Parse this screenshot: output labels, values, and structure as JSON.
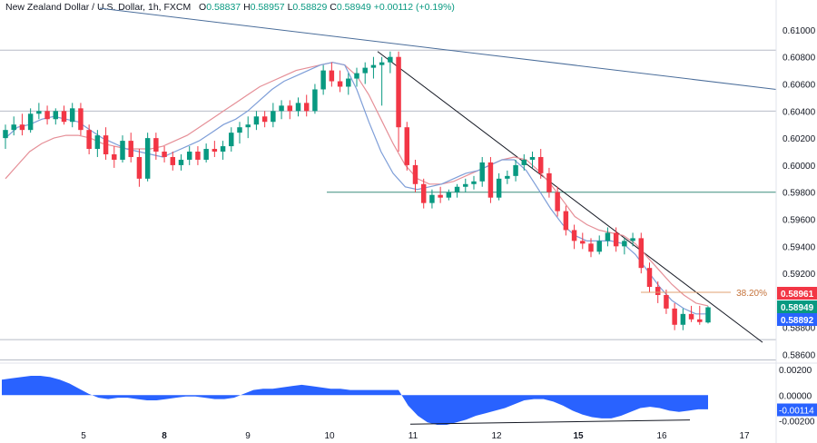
{
  "header": {
    "symbol": "New Zealand Dollar / U.S. Dollar, 1h, FXCM",
    "open_key": "O",
    "open": "0.58837",
    "high_key": "H",
    "high": "0.58957",
    "low_key": "L",
    "low": "0.58829",
    "close_key": "C",
    "close": "0.58949",
    "change": "+0.00112 (+0.19%)"
  },
  "price_axis": {
    "ticks": [
      "0.61000",
      "0.60800",
      "0.60600",
      "0.60400",
      "0.60200",
      "0.60000",
      "0.59800",
      "0.59600",
      "0.59400",
      "0.59200",
      "0.58800",
      "0.58600"
    ],
    "ylim": [
      0.5855,
      0.611
    ]
  },
  "time_axis": {
    "labels": [
      {
        "text": "5",
        "bold": false
      },
      {
        "text": "8",
        "bold": true
      },
      {
        "text": "9",
        "bold": false
      },
      {
        "text": "10",
        "bold": false
      },
      {
        "text": "11",
        "bold": false
      },
      {
        "text": "12",
        "bold": false
      },
      {
        "text": "15",
        "bold": true
      },
      {
        "text": "16",
        "bold": false
      },
      {
        "text": "17",
        "bold": false
      }
    ]
  },
  "price_badges": [
    {
      "text": "0.58961",
      "color": "#f23645"
    },
    {
      "text": "0.58949",
      "color": "#089981"
    },
    {
      "text": "0.58892",
      "color": "#2962ff"
    }
  ],
  "fib_label": "38.20%",
  "oscillator": {
    "ticks": [
      "0.00200",
      "0.00000",
      "-0.00200"
    ],
    "ylim": [
      -0.0023,
      0.0022
    ],
    "value_badge": "-0.00114",
    "values": [
      0.0012,
      0.0013,
      0.0014,
      0.0015,
      0.0015,
      0.0014,
      0.0012,
      0.0009,
      0.0005,
      0.0001,
      -0.0002,
      -0.0003,
      -0.0002,
      -0.0002,
      -0.0003,
      -0.0004,
      -0.0004,
      -0.0003,
      -0.0002,
      -0.0001,
      -0.0001,
      -0.0002,
      -0.0003,
      -0.0003,
      -0.0002,
      0.0001,
      0.0004,
      0.0005,
      0.0005,
      0.0006,
      0.0007,
      0.0008,
      0.0007,
      0.0006,
      0.0005,
      0.0005,
      0.0004,
      0.0004,
      0.0004,
      0.0004,
      0.0004,
      0.0004,
      -0.0008,
      -0.0016,
      -0.0021,
      -0.0023,
      -0.0023,
      -0.0021,
      -0.0019,
      -0.0016,
      -0.0014,
      -0.0012,
      -0.001,
      -0.0007,
      -0.0004,
      -0.0003,
      -0.0003,
      -0.0005,
      -0.0008,
      -0.0012,
      -0.0015,
      -0.0017,
      -0.0018,
      -0.0018,
      -0.0016,
      -0.0013,
      -0.001,
      -0.0009,
      -0.001,
      -0.0012,
      -0.0013,
      -0.0012,
      -0.0011,
      -0.0011
    ]
  },
  "colors": {
    "up": "#089981",
    "down": "#f23645",
    "fast_ma": "#7e9ed8",
    "slow_ma": "#e58f97",
    "oscillator_fill": "#2962ff",
    "fib_line": "#e0a070",
    "fib_text": "#c5733b",
    "horizontal_level": "#3c8d7f",
    "trendline_long": "#4a6d9a",
    "trendline_short": "#131722",
    "grid": "#b7bcc7",
    "axis_text": "#131722"
  },
  "chart_data": {
    "type": "candlestick",
    "levels": [
      0.6085,
      0.604,
      0.598,
      0.5871,
      0.5856
    ],
    "fib_level": 0.5906,
    "candles": [
      [
        0.602,
        0.603,
        0.6012,
        0.6026
      ],
      [
        0.6026,
        0.6036,
        0.6022,
        0.603
      ],
      [
        0.603,
        0.6038,
        0.6022,
        0.6026
      ],
      [
        0.6026,
        0.6042,
        0.6024,
        0.6038
      ],
      [
        0.6038,
        0.6046,
        0.6034,
        0.604
      ],
      [
        0.604,
        0.6044,
        0.603,
        0.6034
      ],
      [
        0.6034,
        0.6042,
        0.603,
        0.604
      ],
      [
        0.604,
        0.6044,
        0.603,
        0.6032
      ],
      [
        0.6032,
        0.6046,
        0.6028,
        0.6042
      ],
      [
        0.6042,
        0.6046,
        0.6022,
        0.6026
      ],
      [
        0.6026,
        0.603,
        0.6008,
        0.6012
      ],
      [
        0.6012,
        0.6026,
        0.6006,
        0.6022
      ],
      [
        0.6022,
        0.6028,
        0.6004,
        0.6008
      ],
      [
        0.6008,
        0.6014,
        0.5998,
        0.6004
      ],
      [
        0.6004,
        0.6022,
        0.6002,
        0.6018
      ],
      [
        0.6018,
        0.6024,
        0.6002,
        0.6006
      ],
      [
        0.6006,
        0.6012,
        0.5984,
        0.599
      ],
      [
        0.599,
        0.6024,
        0.5988,
        0.602
      ],
      [
        0.602,
        0.6024,
        0.6004,
        0.601
      ],
      [
        0.601,
        0.6014,
        0.6002,
        0.6006
      ],
      [
        0.6006,
        0.601,
        0.5996,
        0.6
      ],
      [
        0.6,
        0.6008,
        0.5996,
        0.6004
      ],
      [
        0.6004,
        0.6014,
        0.6,
        0.601
      ],
      [
        0.601,
        0.6014,
        0.6,
        0.6004
      ],
      [
        0.6004,
        0.6016,
        0.6002,
        0.6012
      ],
      [
        0.6012,
        0.6018,
        0.6006,
        0.601
      ],
      [
        0.601,
        0.6018,
        0.6004,
        0.6014
      ],
      [
        0.6014,
        0.6028,
        0.601,
        0.6024
      ],
      [
        0.6024,
        0.6032,
        0.6016,
        0.6028
      ],
      [
        0.6028,
        0.6036,
        0.602,
        0.603
      ],
      [
        0.603,
        0.604,
        0.6026,
        0.6036
      ],
      [
        0.6036,
        0.604,
        0.6028,
        0.6032
      ],
      [
        0.6032,
        0.6046,
        0.6028,
        0.604
      ],
      [
        0.604,
        0.6048,
        0.6034,
        0.6044
      ],
      [
        0.6044,
        0.6048,
        0.6034,
        0.604
      ],
      [
        0.604,
        0.605,
        0.6036,
        0.6046
      ],
      [
        0.6046,
        0.6052,
        0.6036,
        0.604
      ],
      [
        0.604,
        0.606,
        0.6038,
        0.6056
      ],
      [
        0.6056,
        0.6074,
        0.6052,
        0.607
      ],
      [
        0.607,
        0.6076,
        0.6058,
        0.6062
      ],
      [
        0.6062,
        0.607,
        0.6054,
        0.6058
      ],
      [
        0.6058,
        0.6068,
        0.6052,
        0.6064
      ],
      [
        0.6064,
        0.6072,
        0.6058,
        0.6068
      ],
      [
        0.6068,
        0.6076,
        0.606,
        0.6072
      ],
      [
        0.6072,
        0.608,
        0.6064,
        0.6074
      ],
      [
        0.6074,
        0.608,
        0.6044,
        0.6076
      ],
      [
        0.6076,
        0.6084,
        0.6068,
        0.608
      ],
      [
        0.608,
        0.6084,
        0.601,
        0.6028
      ],
      [
        0.6028,
        0.6032,
        0.5996,
        0.6
      ],
      [
        0.6,
        0.6004,
        0.598,
        0.5986
      ],
      [
        0.5986,
        0.599,
        0.5968,
        0.5972
      ],
      [
        0.5972,
        0.5982,
        0.5968,
        0.5978
      ],
      [
        0.5978,
        0.5984,
        0.5972,
        0.5976
      ],
      [
        0.5976,
        0.5982,
        0.5974,
        0.598
      ],
      [
        0.598,
        0.5986,
        0.5976,
        0.5984
      ],
      [
        0.5984,
        0.599,
        0.598,
        0.5986
      ],
      [
        0.5986,
        0.5992,
        0.5982,
        0.5988
      ],
      [
        0.5988,
        0.6006,
        0.5984,
        0.6002
      ],
      [
        0.6002,
        0.6006,
        0.5972,
        0.5976
      ],
      [
        0.5976,
        0.5994,
        0.5974,
        0.599
      ],
      [
        0.599,
        0.5996,
        0.5986,
        0.5992
      ],
      [
        0.5992,
        0.6004,
        0.5988,
        0.6
      ],
      [
        0.6,
        0.6008,
        0.5996,
        0.6004
      ],
      [
        0.6004,
        0.601,
        0.5998,
        0.6006
      ],
      [
        0.6006,
        0.6012,
        0.599,
        0.5994
      ],
      [
        0.5994,
        0.5998,
        0.5976,
        0.598
      ],
      [
        0.598,
        0.5984,
        0.5962,
        0.5966
      ],
      [
        0.5966,
        0.597,
        0.5948,
        0.5952
      ],
      [
        0.5952,
        0.5956,
        0.5938,
        0.5944
      ],
      [
        0.5944,
        0.595,
        0.5938,
        0.5942
      ],
      [
        0.5942,
        0.5946,
        0.5932,
        0.5936
      ],
      [
        0.5936,
        0.5948,
        0.5934,
        0.5944
      ],
      [
        0.5944,
        0.5954,
        0.594,
        0.595
      ],
      [
        0.595,
        0.5954,
        0.5936,
        0.594
      ],
      [
        0.594,
        0.5946,
        0.5934,
        0.5944
      ],
      [
        0.5944,
        0.595,
        0.594,
        0.5946
      ],
      [
        0.5946,
        0.595,
        0.592,
        0.5924
      ],
      [
        0.5924,
        0.5928,
        0.5906,
        0.591
      ],
      [
        0.591,
        0.5914,
        0.5898,
        0.5904
      ],
      [
        0.5904,
        0.5908,
        0.589,
        0.5894
      ],
      [
        0.5894,
        0.5898,
        0.5878,
        0.5882
      ],
      [
        0.5882,
        0.5894,
        0.5878,
        0.589
      ],
      [
        0.589,
        0.5896,
        0.5884,
        0.5886
      ],
      [
        0.5886,
        0.5896,
        0.5882,
        0.5884
      ],
      [
        0.58837,
        0.58957,
        0.58829,
        0.58949
      ]
    ],
    "fast_ma": [
      0.602,
      0.6028,
      0.603,
      0.6034,
      0.6036,
      0.6034,
      0.6032,
      0.6026,
      0.602,
      0.6016,
      0.6012,
      0.601,
      0.6008,
      0.6006,
      0.601,
      0.6014,
      0.6018,
      0.6024,
      0.603,
      0.6034,
      0.604,
      0.6048,
      0.6056,
      0.6062,
      0.6066,
      0.607,
      0.6074,
      0.6076,
      0.6074,
      0.6056,
      0.6032,
      0.601,
      0.5994,
      0.5984,
      0.5982,
      0.5984,
      0.5986,
      0.599,
      0.5994,
      0.5996,
      0.6,
      0.6004,
      0.6004,
      0.5996,
      0.5982,
      0.5968,
      0.5956,
      0.5948,
      0.5944,
      0.5944,
      0.5944,
      0.5942,
      0.5934,
      0.5922,
      0.591,
      0.59,
      0.5894,
      0.589,
      0.589
    ],
    "slow_ma": [
      0.599,
      0.6,
      0.601,
      0.6016,
      0.602,
      0.6022,
      0.6022,
      0.602,
      0.6016,
      0.6014,
      0.6012,
      0.6012,
      0.6012,
      0.6014,
      0.6018,
      0.6022,
      0.6028,
      0.6034,
      0.604,
      0.6046,
      0.6052,
      0.6058,
      0.6062,
      0.6066,
      0.607,
      0.6072,
      0.6074,
      0.6076,
      0.6074,
      0.6066,
      0.6052,
      0.6034,
      0.6016,
      0.6,
      0.599,
      0.5986,
      0.5986,
      0.5988,
      0.5992,
      0.5996,
      0.6,
      0.6004,
      0.6006,
      0.6004,
      0.5996,
      0.5986,
      0.5974,
      0.5962,
      0.5956,
      0.5952,
      0.595,
      0.5948,
      0.5942,
      0.5932,
      0.5922,
      0.5912,
      0.5904,
      0.5898,
      0.5896
    ]
  }
}
